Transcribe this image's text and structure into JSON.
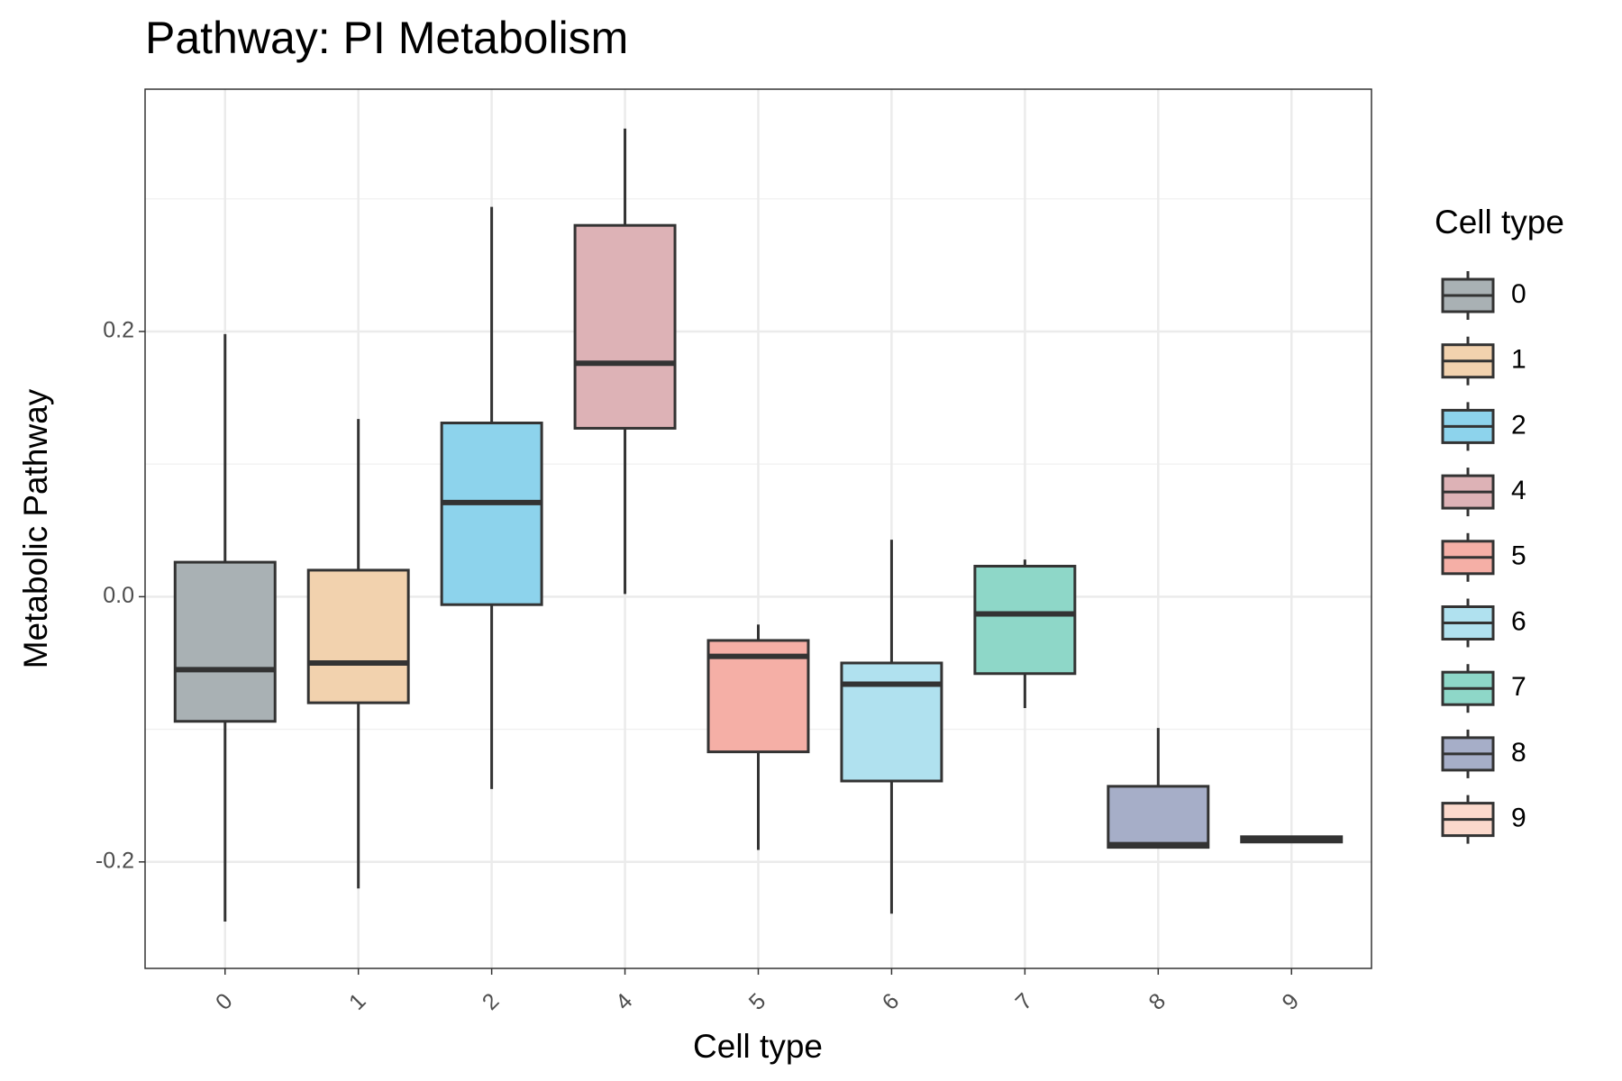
{
  "chart_data": {
    "type": "box",
    "title": "Pathway: PI Metabolism",
    "x_label": "Cell type",
    "y_label": "Metabolic Pathway",
    "legend_title": "Cell type",
    "categories": [
      "0",
      "1",
      "2",
      "4",
      "5",
      "6",
      "7",
      "8",
      "9"
    ],
    "colors": [
      "#a9b1b4",
      "#f2d2ae",
      "#8dd3ec",
      "#ddb2b6",
      "#f5afa6",
      "#b0e1ef",
      "#8ed7c8",
      "#a6aec8",
      "#fbd9cc"
    ],
    "boxes": [
      {
        "min": -0.245,
        "q1": -0.094,
        "median": -0.055,
        "q3": 0.026,
        "max": 0.198
      },
      {
        "min": -0.22,
        "q1": -0.08,
        "median": -0.05,
        "q3": 0.02,
        "max": 0.134
      },
      {
        "min": -0.145,
        "q1": -0.006,
        "median": 0.071,
        "q3": 0.131,
        "max": 0.294
      },
      {
        "min": 0.002,
        "q1": 0.127,
        "median": 0.176,
        "q3": 0.28,
        "max": 0.353
      },
      {
        "min": -0.191,
        "q1": -0.117,
        "median": -0.045,
        "q3": -0.033,
        "max": -0.021
      },
      {
        "min": -0.239,
        "q1": -0.139,
        "median": -0.066,
        "q3": -0.05,
        "max": 0.043
      },
      {
        "min": -0.084,
        "q1": -0.058,
        "median": -0.013,
        "q3": 0.023,
        "max": 0.028
      },
      {
        "min": -0.189,
        "q1": -0.189,
        "median": -0.187,
        "q3": -0.143,
        "max": -0.099
      },
      {
        "min": -0.185,
        "q1": -0.185,
        "median": -0.183,
        "q3": -0.181,
        "max": -0.181
      }
    ],
    "ylim": [
      -0.2803,
      0.3827
    ],
    "yticks": [
      -0.2,
      {
        "value": 0,
        "label": "0.0"
      },
      0.2
    ],
    "y_minor_ticks": [
      -0.1,
      0.1,
      0.3
    ],
    "grid": true,
    "legend": "right"
  }
}
